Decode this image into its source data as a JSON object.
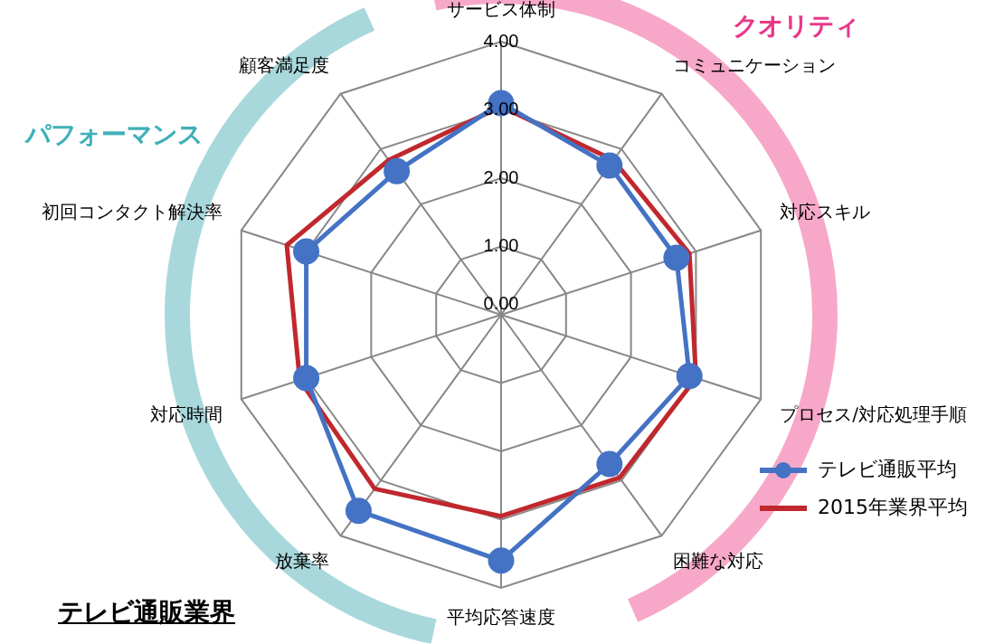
{
  "chart_data": {
    "type": "radar",
    "title": "テレビ通販業界",
    "annotations": [
      "クオリティ",
      "パフォーマンス"
    ],
    "categories": [
      "サービス体制",
      "コミュニケーション",
      "対応スキル",
      "プロセス/対応処理手順",
      "困難な対応",
      "平均応答速度",
      "放棄率",
      "対応時間",
      "初回コンタクト解決率",
      "顧客満足度"
    ],
    "series": [
      {
        "name": "テレビ通販平均",
        "color": "#4472c4",
        "marker": "circle",
        "values": [
          3.1,
          2.7,
          2.7,
          2.9,
          2.7,
          3.6,
          3.55,
          3.0,
          3.0,
          2.6
        ]
      },
      {
        "name": "2015年業界平均",
        "color": "#c0282d",
        "marker": "none",
        "values": [
          3.05,
          2.8,
          2.9,
          3.0,
          2.95,
          2.95,
          3.15,
          3.1,
          3.3,
          2.8
        ]
      }
    ],
    "ylim": [
      0,
      4
    ],
    "yticks": [
      {
        "value": 0,
        "label": "0.00"
      },
      {
        "value": 1,
        "label": "1.00"
      },
      {
        "value": 2,
        "label": "2.00"
      },
      {
        "value": 3,
        "label": "3.00"
      },
      {
        "value": 4,
        "label": "4.00"
      }
    ],
    "grid": true,
    "legend": "bottom right"
  }
}
